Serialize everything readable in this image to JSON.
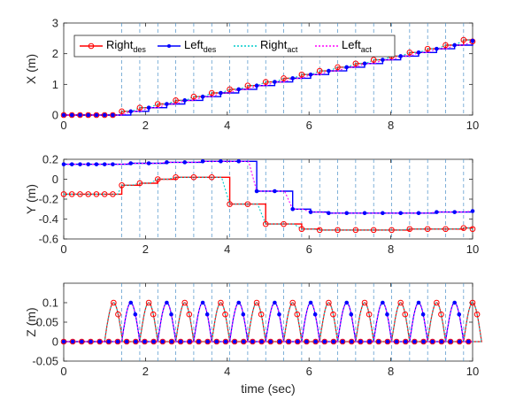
{
  "chart_data": [
    {
      "type": "line",
      "ylabel": "X (m)",
      "xlabel": "",
      "xlim": [
        0,
        10
      ],
      "ylim": [
        0,
        3
      ],
      "yticks": [
        "0",
        "1",
        "2",
        "3"
      ],
      "xticks": [
        "0",
        "2",
        "4",
        "6",
        "8",
        "10"
      ],
      "step_lines_x": [
        1.42,
        1.86,
        2.3,
        2.74,
        3.18,
        3.62,
        4.06,
        4.5,
        4.94,
        5.38,
        5.82,
        6.26,
        6.7,
        7.14,
        7.58,
        8.02,
        8.46,
        8.9,
        9.34,
        9.78
      ],
      "series": [
        {
          "name": "Right",
          "sub": "des",
          "role": "right_des",
          "color": "#ff0000",
          "x": [
            0,
            0.2,
            0.4,
            0.6,
            0.8,
            1.0,
            1.2,
            1.42,
            1.86,
            2.3,
            2.74,
            3.18,
            3.62,
            4.06,
            4.5,
            4.94,
            5.38,
            5.82,
            6.26,
            6.7,
            7.14,
            7.58,
            8.02,
            8.46,
            8.9,
            9.34,
            9.78,
            10.0
          ],
          "values": [
            0,
            0,
            0,
            0,
            0,
            0,
            0,
            0.12,
            0.24,
            0.36,
            0.48,
            0.6,
            0.72,
            0.84,
            0.96,
            1.08,
            1.2,
            1.32,
            1.44,
            1.56,
            1.68,
            1.8,
            1.92,
            2.04,
            2.16,
            2.28,
            2.45,
            2.4
          ]
        },
        {
          "name": "Left",
          "sub": "des",
          "role": "left_des",
          "color": "#0000ff",
          "x": [
            0,
            0.2,
            0.4,
            0.6,
            0.8,
            1.0,
            1.2,
            1.64,
            2.08,
            2.52,
            2.96,
            3.4,
            3.84,
            4.28,
            4.72,
            5.16,
            5.6,
            6.04,
            6.48,
            6.92,
            7.36,
            7.8,
            8.24,
            8.68,
            9.12,
            9.56,
            10.0
          ],
          "values": [
            0,
            0,
            0,
            0,
            0,
            0,
            0,
            0.12,
            0.24,
            0.36,
            0.48,
            0.6,
            0.72,
            0.84,
            0.96,
            1.08,
            1.2,
            1.32,
            1.44,
            1.56,
            1.68,
            1.8,
            1.92,
            2.04,
            2.16,
            2.28,
            2.42
          ]
        },
        {
          "name": "Right",
          "sub": "act",
          "role": "right_act",
          "color": "#00cccc"
        },
        {
          "name": "Left",
          "sub": "act",
          "role": "left_act",
          "color": "#ff00ff"
        }
      ]
    },
    {
      "type": "line",
      "ylabel": "Y (m)",
      "xlabel": "",
      "xlim": [
        0,
        10
      ],
      "ylim": [
        -0.6,
        0.2
      ],
      "yticks": [
        "-0.6",
        "-0.4",
        "-0.2",
        "0",
        "0.2"
      ],
      "xticks": [
        "0",
        "2",
        "4",
        "6",
        "8",
        "10"
      ],
      "series": [
        {
          "name": "Right",
          "sub": "des",
          "role": "right_des",
          "color": "#ff0000",
          "x": [
            0,
            0.2,
            0.4,
            0.6,
            0.8,
            1.0,
            1.2,
            1.42,
            1.86,
            2.3,
            2.74,
            3.18,
            3.62,
            4.06,
            4.5,
            4.94,
            5.38,
            5.82,
            6.26,
            6.7,
            7.14,
            7.58,
            8.02,
            8.46,
            8.9,
            9.34,
            9.78,
            10.0
          ],
          "values": [
            -0.15,
            -0.15,
            -0.15,
            -0.15,
            -0.15,
            -0.15,
            -0.15,
            -0.06,
            -0.04,
            0.0,
            0.02,
            0.02,
            0.02,
            -0.25,
            -0.25,
            -0.45,
            -0.45,
            -0.5,
            -0.51,
            -0.51,
            -0.51,
            -0.51,
            -0.51,
            -0.5,
            -0.5,
            -0.5,
            -0.49,
            -0.5
          ]
        },
        {
          "name": "Left",
          "sub": "des",
          "role": "left_des",
          "color": "#0000ff",
          "x": [
            0,
            0.2,
            0.4,
            0.6,
            0.8,
            1.0,
            1.2,
            1.64,
            2.08,
            2.52,
            2.96,
            3.4,
            3.84,
            4.28,
            4.72,
            5.16,
            5.6,
            6.04,
            6.48,
            6.92,
            7.36,
            7.8,
            8.24,
            8.68,
            9.12,
            9.56,
            10.0
          ],
          "values": [
            0.15,
            0.15,
            0.15,
            0.15,
            0.15,
            0.15,
            0.15,
            0.16,
            0.16,
            0.17,
            0.17,
            0.18,
            0.18,
            0.18,
            -0.12,
            -0.12,
            -0.3,
            -0.33,
            -0.34,
            -0.34,
            -0.34,
            -0.34,
            -0.34,
            -0.34,
            -0.33,
            -0.33,
            -0.32
          ]
        },
        {
          "name": "Right",
          "sub": "act",
          "role": "right_act",
          "color": "#00cccc"
        },
        {
          "name": "Left",
          "sub": "act",
          "role": "left_act",
          "color": "#ff00ff"
        }
      ]
    },
    {
      "type": "line",
      "ylabel": "Z (m)",
      "xlabel": "time (sec)",
      "xlim": [
        0,
        10
      ],
      "ylim": [
        -0.05,
        0.15
      ],
      "yticks": [
        "-0.05",
        "0",
        "0.05",
        "0.1"
      ],
      "xticks": [
        "0",
        "2",
        "4",
        "6",
        "8",
        "10"
      ],
      "swing": {
        "height": 0.1,
        "duration": 0.44
      },
      "series": [
        {
          "name": "Right",
          "sub": "des",
          "role": "right_des",
          "color": "#ff0000",
          "swing_starts": [
            1.0,
            1.86,
            2.74,
            3.62,
            4.5,
            5.38,
            6.26,
            7.14,
            8.02,
            8.9,
            9.78
          ]
        },
        {
          "name": "Left",
          "sub": "des",
          "role": "left_des",
          "color": "#0000ff",
          "swing_starts": [
            1.42,
            2.3,
            3.18,
            4.06,
            4.94,
            5.82,
            6.7,
            7.58,
            8.46,
            9.34
          ]
        },
        {
          "name": "Right",
          "sub": "act",
          "role": "right_act",
          "color": "#00cccc"
        },
        {
          "name": "Left",
          "sub": "act",
          "role": "left_act",
          "color": "#ff00ff"
        }
      ]
    }
  ]
}
